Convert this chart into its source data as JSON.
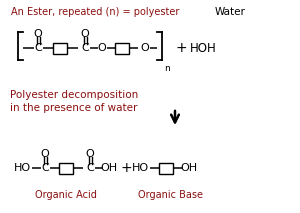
{
  "bg_color": "#ffffff",
  "dark_red": "#8B1010",
  "black": "#000000",
  "title_top": "An Ester, repeated (n) = polyester",
  "water_label": "Water",
  "mid_text_line1": "Polyester decomposition",
  "mid_text_line2": "in the presence of water",
  "organic_acid_label": "Organic Acid",
  "organic_base_label": "Organic Base",
  "hoh_label": "HOH"
}
